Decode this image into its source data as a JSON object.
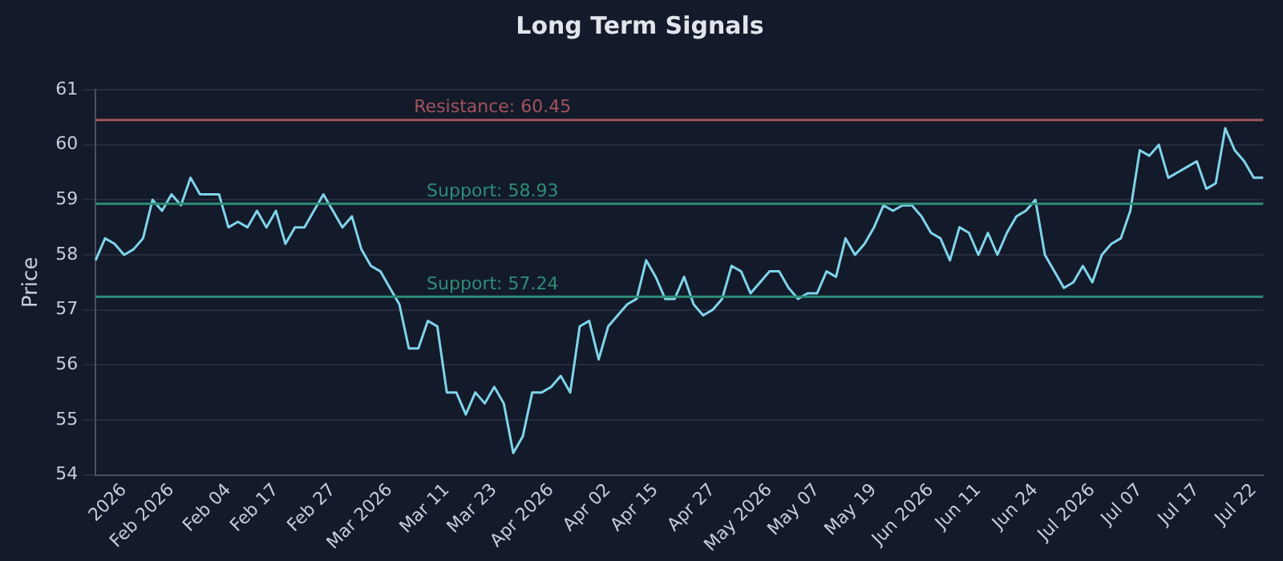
{
  "chart_data": {
    "type": "line",
    "title": "Long Term Signals",
    "ylabel": "Price",
    "categories": [
      null,
      null,
      null,
      "2026",
      null,
      null,
      null,
      null,
      "Feb 2026",
      null,
      null,
      null,
      null,
      null,
      "Feb 04",
      null,
      null,
      null,
      null,
      "Feb 17",
      null,
      null,
      null,
      null,
      null,
      "Feb 27",
      null,
      null,
      null,
      null,
      null,
      "Mar 2026",
      null,
      null,
      null,
      null,
      null,
      "Mar 11",
      null,
      null,
      null,
      null,
      "Mar 23",
      null,
      null,
      null,
      null,
      null,
      "Apr 2026",
      null,
      null,
      null,
      null,
      null,
      "Apr 02",
      null,
      null,
      null,
      null,
      "Apr 15",
      null,
      null,
      null,
      null,
      null,
      "Apr 27",
      null,
      null,
      null,
      null,
      null,
      "May 2026",
      null,
      null,
      null,
      null,
      "May 07",
      null,
      null,
      null,
      null,
      null,
      "May 19",
      null,
      null,
      null,
      null,
      null,
      "Jun 2026",
      null,
      null,
      null,
      null,
      "Jun 11",
      null,
      null,
      null,
      null,
      null,
      "Jun 24",
      null,
      null,
      null,
      null,
      null,
      "Jul 2026",
      null,
      null,
      null,
      null,
      "Jul 07",
      null,
      null,
      null,
      null,
      null,
      "Jul 17",
      null,
      null,
      null,
      null,
      null,
      "Jul 22",
      null
    ],
    "series": [
      {
        "color": "#7fd4ea",
        "values": [
          57.9,
          58.3,
          58.2,
          58.0,
          58.1,
          58.3,
          59.0,
          58.8,
          59.1,
          58.9,
          59.4,
          59.1,
          59.1,
          59.1,
          58.5,
          58.6,
          58.5,
          58.8,
          58.5,
          58.8,
          58.2,
          58.5,
          58.5,
          58.8,
          59.1,
          58.8,
          58.5,
          58.7,
          58.1,
          57.8,
          57.7,
          57.4,
          57.1,
          56.3,
          56.3,
          56.8,
          56.7,
          55.5,
          55.5,
          55.1,
          55.5,
          55.3,
          55.6,
          55.3,
          54.4,
          54.7,
          55.5,
          55.5,
          55.6,
          55.8,
          55.5,
          56.7,
          56.8,
          56.1,
          56.7,
          56.9,
          57.1,
          57.2,
          57.9,
          57.6,
          57.2,
          57.2,
          57.6,
          57.1,
          56.9,
          57.0,
          57.2,
          57.8,
          57.7,
          57.3,
          57.5,
          57.7,
          57.7,
          57.4,
          57.2,
          57.3,
          57.3,
          57.7,
          57.6,
          58.3,
          58.0,
          58.2,
          58.5,
          58.9,
          58.8,
          58.9,
          58.9,
          58.7,
          58.4,
          58.3,
          57.9,
          58.5,
          58.4,
          58.0,
          58.4,
          58.0,
          58.4,
          58.7,
          58.8,
          59.0,
          58.0,
          57.7,
          57.4,
          57.5,
          57.8,
          57.5,
          58.0,
          58.2,
          58.3,
          58.8,
          59.9,
          59.8,
          60.0,
          59.4,
          59.5,
          59.6,
          59.7,
          59.2,
          59.3,
          60.3,
          59.9,
          59.7,
          59.4,
          59.4
        ]
      }
    ],
    "ylim": [
      54,
      61
    ],
    "yticks": [
      54,
      55,
      56,
      57,
      58,
      59,
      60,
      61
    ],
    "grid": "y",
    "legend": false,
    "marker": "none",
    "line_style": "solid",
    "ref_lines": [
      {
        "axis": "y",
        "value": 60.45,
        "label": "Resistance: 60.45",
        "color": "#a3545d"
      },
      {
        "axis": "y",
        "value": 58.93,
        "label": "Support: 58.93",
        "color": "#2e8e76"
      },
      {
        "axis": "y",
        "value": 57.24,
        "label": "Support: 57.24",
        "color": "#2e8e76"
      }
    ]
  }
}
